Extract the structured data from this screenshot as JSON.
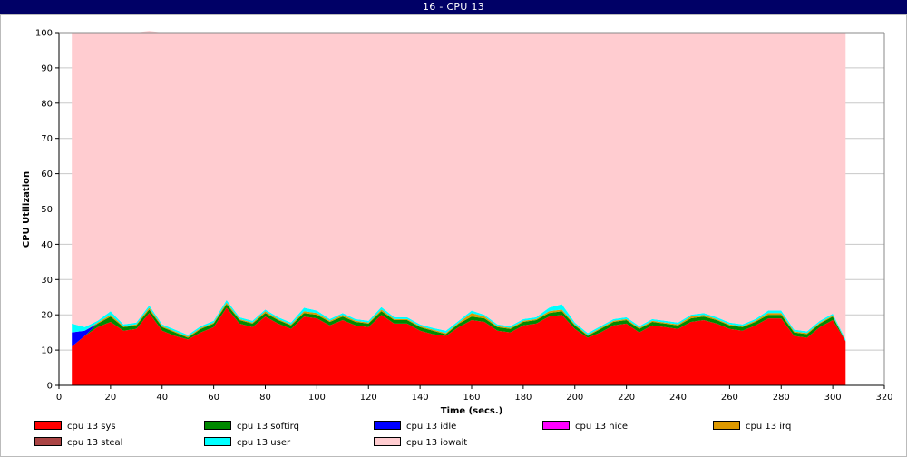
{
  "window": {
    "title": "16 - CPU 13"
  },
  "chart_data": {
    "type": "area",
    "stacked": true,
    "xlabel": "Time (secs.)",
    "ylabel": "CPU Utilization",
    "xlim": [
      0,
      320
    ],
    "ylim": [
      0,
      100
    ],
    "xticks": [
      0,
      20,
      40,
      60,
      80,
      100,
      120,
      140,
      160,
      180,
      200,
      220,
      240,
      260,
      280,
      300,
      320
    ],
    "yticks": [
      0,
      10,
      20,
      30,
      40,
      50,
      60,
      70,
      80,
      90,
      100
    ],
    "grid": true,
    "legend_position": "bottom",
    "x": [
      5,
      10,
      15,
      20,
      25,
      30,
      35,
      40,
      45,
      50,
      55,
      60,
      65,
      70,
      75,
      80,
      85,
      90,
      95,
      100,
      105,
      110,
      115,
      120,
      125,
      130,
      135,
      140,
      145,
      150,
      155,
      160,
      165,
      170,
      175,
      180,
      185,
      190,
      195,
      200,
      205,
      210,
      215,
      220,
      225,
      230,
      235,
      240,
      245,
      250,
      255,
      260,
      265,
      270,
      275,
      280,
      285,
      290,
      295,
      300,
      305
    ],
    "series": [
      {
        "name": "cpu 13 sys",
        "color": "#ff0000",
        "values": [
          11,
          14,
          16.5,
          18,
          15.5,
          16,
          20.5,
          15.5,
          14,
          13,
          15,
          16.5,
          22,
          17.5,
          16.5,
          19.5,
          17.5,
          16,
          19.5,
          19,
          17,
          18.5,
          17,
          16.5,
          20,
          17.5,
          17.5,
          15.5,
          14.5,
          14,
          16.5,
          18.5,
          18,
          15.5,
          15,
          17,
          17.5,
          19.5,
          20,
          16,
          13.5,
          15,
          17,
          17.5,
          15,
          17,
          16.5,
          16,
          18,
          18.5,
          17.5,
          16,
          15.5,
          17,
          19,
          19,
          14,
          13.5,
          16.5,
          18.5,
          12.5
        ]
      },
      {
        "name": "cpu 13 softirq",
        "color": "#008800",
        "values": [
          0,
          0,
          1,
          1.5,
          1,
          1,
          1,
          1,
          1,
          0.5,
          1,
          1,
          1,
          1,
          1,
          1,
          1,
          1,
          1,
          1,
          1,
          1,
          1,
          1,
          1,
          1,
          1,
          1,
          1,
          0.5,
          1,
          1,
          1,
          1,
          1,
          1,
          1,
          1,
          1,
          1,
          0.5,
          1,
          1,
          1,
          1,
          1,
          1,
          1,
          1,
          1,
          1,
          1,
          1,
          1,
          1,
          1,
          1,
          1,
          1,
          1,
          0
        ]
      },
      {
        "name": "cpu 13 idle",
        "color": "#0000ff",
        "values": [
          4,
          1.5,
          0,
          0,
          0,
          0,
          0,
          0,
          0,
          0,
          0,
          0,
          0,
          0,
          0,
          0,
          0,
          0,
          0,
          0,
          0,
          0,
          0,
          0,
          0,
          0,
          0,
          0,
          0,
          0,
          0,
          0,
          0,
          0,
          0,
          0,
          0,
          0,
          0,
          0,
          0,
          0,
          0,
          0,
          0,
          0,
          0,
          0,
          0,
          0,
          0,
          0,
          0,
          0,
          0,
          0,
          0,
          0,
          0,
          0,
          0
        ]
      },
      {
        "name": "cpu 13 nice",
        "color": "#ff00ff",
        "values": [
          0,
          0,
          0,
          0,
          0,
          0,
          0,
          0,
          0,
          0,
          0,
          0,
          0,
          0,
          0,
          0,
          0,
          0,
          0,
          0,
          0,
          0,
          0,
          0,
          0,
          0,
          0,
          0,
          0,
          0,
          0,
          0,
          0,
          0,
          0,
          0,
          0,
          0,
          0,
          0,
          0,
          0,
          0,
          0,
          0,
          0,
          0,
          0,
          0,
          0,
          0,
          0,
          0,
          0,
          0,
          0,
          0,
          0,
          0,
          0,
          0
        ]
      },
      {
        "name": "cpu 13 irq",
        "color": "#dd9900",
        "values": [
          0,
          0,
          0.3,
          0.5,
          0.3,
          0.3,
          0.5,
          0.3,
          0.3,
          0.3,
          0.3,
          0.3,
          0.5,
          0.3,
          0.3,
          0.5,
          0.3,
          0.3,
          0.5,
          0.5,
          0.3,
          0.5,
          0.3,
          0.3,
          0.5,
          0.3,
          0.3,
          0.3,
          0.3,
          0.3,
          0.3,
          1,
          0.5,
          0.3,
          0.3,
          0.3,
          0.3,
          0.5,
          0.5,
          0.3,
          0.3,
          0.3,
          0.3,
          0.3,
          0.3,
          0.3,
          0.3,
          0.3,
          0.5,
          0.5,
          0.3,
          0.3,
          0.3,
          0.3,
          0.5,
          0.5,
          0.3,
          0.3,
          0.3,
          0.3,
          0
        ]
      },
      {
        "name": "cpu 13 steal",
        "color": "#aa4444",
        "values": [
          0,
          0,
          0,
          0,
          0,
          0,
          0,
          0,
          0,
          0,
          0,
          0,
          0,
          0,
          0,
          0,
          0,
          0,
          0,
          0,
          0,
          0,
          0,
          0,
          0,
          0,
          0,
          0,
          0,
          0,
          0,
          0,
          0,
          0,
          0,
          0,
          0,
          0,
          0,
          0,
          0,
          0,
          0,
          0,
          0,
          0,
          0,
          0,
          0,
          0,
          0,
          0,
          0,
          0,
          0,
          0,
          0,
          0,
          0,
          0,
          0
        ]
      },
      {
        "name": "cpu 13 user",
        "color": "#00ffff",
        "values": [
          2.5,
          1,
          0.5,
          1,
          0.5,
          0.5,
          0.7,
          0.5,
          0.5,
          0.5,
          0.5,
          0.5,
          0.7,
          0.5,
          0.5,
          0.5,
          0.5,
          0.5,
          1,
          0.7,
          0.5,
          0.5,
          0.5,
          0.5,
          0.7,
          0.5,
          0.5,
          0.5,
          0.5,
          0.7,
          0.5,
          0.7,
          0.5,
          0.5,
          0.5,
          0.5,
          0.5,
          1,
          1.5,
          0.5,
          0.5,
          0.5,
          0.5,
          0.5,
          0.5,
          0.5,
          0.5,
          0.5,
          0.5,
          0.5,
          0.5,
          0.5,
          0.5,
          0.5,
          0.7,
          0.7,
          0.5,
          0.5,
          0.5,
          0.5,
          0.5
        ]
      },
      {
        "name": "cpu 13 iowait",
        "color": "#ffccd0",
        "values": [
          82.5,
          83.5,
          81.7,
          79,
          82.7,
          82.2,
          77.8,
          82.7,
          84.2,
          85.7,
          83.2,
          81.7,
          75.8,
          80.7,
          81.7,
          78.5,
          80.7,
          82.2,
          78,
          78.8,
          81.2,
          79.5,
          81.2,
          81.7,
          77.8,
          80.7,
          80.7,
          82.7,
          83.7,
          84.5,
          81.7,
          78.8,
          80,
          82.7,
          83.2,
          81.2,
          80.7,
          78,
          77,
          82.2,
          85.2,
          83.2,
          81.2,
          80.7,
          83.2,
          81.2,
          81.7,
          82.2,
          80,
          79.5,
          80.7,
          82.2,
          82.7,
          81.2,
          78.8,
          78.8,
          84.2,
          84.7,
          81.7,
          79.7,
          87
        ]
      }
    ]
  }
}
